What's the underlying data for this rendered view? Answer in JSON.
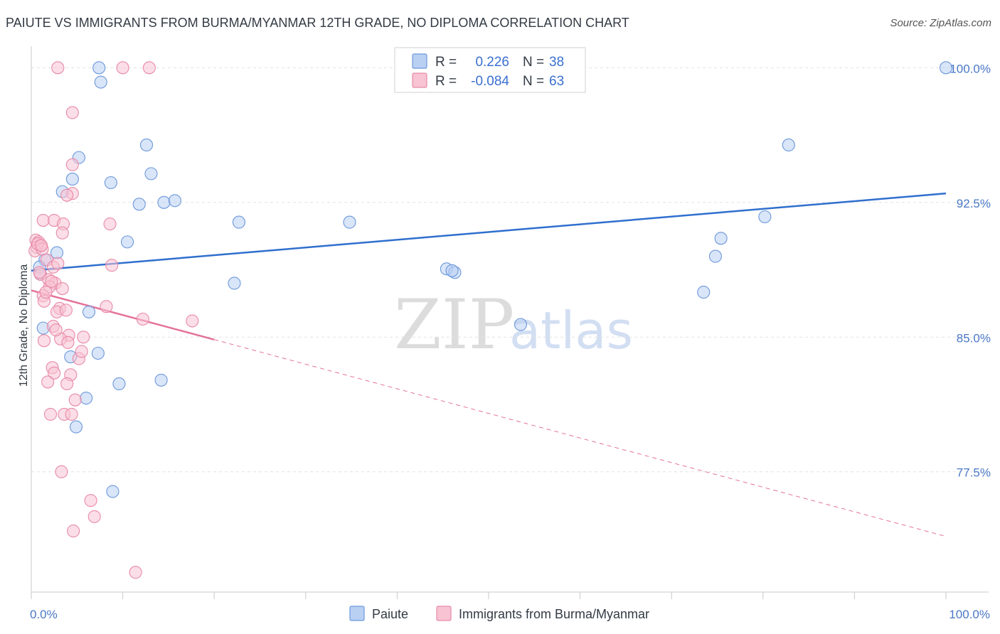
{
  "title": "PAIUTE VS IMMIGRANTS FROM BURMA/MYANMAR 12TH GRADE, NO DIPLOMA CORRELATION CHART",
  "source": "Source: ZipAtlas.com",
  "watermark": {
    "zip": "ZIP",
    "atlas": "atlas"
  },
  "colors": {
    "blue_fill": "#b9d0f3",
    "blue_stroke": "#6c98db",
    "blue_line": "#2f6fce",
    "pink_fill": "#f8c3d3",
    "pink_stroke": "#e88aa8",
    "pink_line": "#e4729b",
    "grid": "#e2e2e2",
    "tick_text": "#4a78c6"
  },
  "chart_data": {
    "type": "scatter",
    "title": "PAIUTE VS IMMIGRANTS FROM BURMA/MYANMAR 12TH GRADE, NO DIPLOMA CORRELATION CHART",
    "xlabel": "",
    "ylabel": "12th Grade, No Diploma",
    "xlim": [
      0,
      100
    ],
    "ylim": [
      70.8,
      101.2
    ],
    "x_tick_labels": [
      {
        "value": 0,
        "label": "0.0%"
      },
      {
        "value": 100,
        "label": "100.0%"
      }
    ],
    "y_ticks": [
      {
        "value": 100,
        "label": "100.0%"
      },
      {
        "value": 92.5,
        "label": "92.5%"
      },
      {
        "value": 85,
        "label": "85.0%"
      },
      {
        "value": 77.5,
        "label": "77.5%"
      }
    ],
    "x_minor_ticks": [
      0,
      10,
      20,
      30,
      40,
      50,
      60,
      70,
      80,
      90,
      100
    ],
    "legend": [
      {
        "label": "Paiute",
        "r_label": "R =",
        "r_value": "0.226",
        "n_label": "N =",
        "n_value": "38"
      },
      {
        "label": "Immigrants from Burma/Myanmar",
        "r_label": "R =",
        "r_value": "-0.084",
        "n_label": "N =",
        "n_value": "63"
      }
    ],
    "series": [
      {
        "name": "Paiute",
        "trend": {
          "x0": 0,
          "y0": 88.7,
          "x1": 100,
          "y1": 93.0,
          "dashed_from": null
        },
        "points": [
          {
            "x": 7.4,
            "y": 100.0
          },
          {
            "x": 7.6,
            "y": 99.2
          },
          {
            "x": 5.2,
            "y": 95.0
          },
          {
            "x": 12.6,
            "y": 95.7
          },
          {
            "x": 4.5,
            "y": 93.8
          },
          {
            "x": 13.1,
            "y": 94.1
          },
          {
            "x": 8.7,
            "y": 93.6
          },
          {
            "x": 3.4,
            "y": 93.1
          },
          {
            "x": 11.8,
            "y": 92.4
          },
          {
            "x": 14.5,
            "y": 92.5
          },
          {
            "x": 15.7,
            "y": 92.6
          },
          {
            "x": 22.7,
            "y": 91.4
          },
          {
            "x": 34.8,
            "y": 91.4
          },
          {
            "x": 10.5,
            "y": 90.3
          },
          {
            "x": 2.8,
            "y": 89.7
          },
          {
            "x": 1.5,
            "y": 89.3
          },
          {
            "x": 0.9,
            "y": 88.9
          },
          {
            "x": 22.2,
            "y": 88.0
          },
          {
            "x": 45.4,
            "y": 88.8
          },
          {
            "x": 46.3,
            "y": 88.6
          },
          {
            "x": 53.5,
            "y": 85.7
          },
          {
            "x": 6.3,
            "y": 86.4
          },
          {
            "x": 1.3,
            "y": 85.5
          },
          {
            "x": 7.3,
            "y": 84.1
          },
          {
            "x": 4.3,
            "y": 83.9
          },
          {
            "x": 9.6,
            "y": 82.4
          },
          {
            "x": 14.2,
            "y": 82.6
          },
          {
            "x": 6.0,
            "y": 81.6
          },
          {
            "x": 4.9,
            "y": 80.0
          },
          {
            "x": 8.9,
            "y": 76.4
          },
          {
            "x": 100.0,
            "y": 100.0
          },
          {
            "x": 82.8,
            "y": 95.7
          },
          {
            "x": 75.4,
            "y": 90.5
          },
          {
            "x": 80.2,
            "y": 91.7
          },
          {
            "x": 74.8,
            "y": 89.5
          },
          {
            "x": 73.5,
            "y": 87.5
          },
          {
            "x": 1.0,
            "y": 88.5
          },
          {
            "x": 46.0,
            "y": 88.7
          }
        ]
      },
      {
        "name": "Immigrants from Burma/Myanmar",
        "trend": {
          "x0": 0,
          "y0": 87.6,
          "x1": 100,
          "y1": 73.9,
          "dashed_from": 20
        },
        "points": [
          {
            "x": 2.9,
            "y": 100.0
          },
          {
            "x": 10.0,
            "y": 100.0
          },
          {
            "x": 12.9,
            "y": 100.0
          },
          {
            "x": 4.5,
            "y": 97.5
          },
          {
            "x": 4.5,
            "y": 94.6
          },
          {
            "x": 4.5,
            "y": 93.0
          },
          {
            "x": 3.9,
            "y": 92.9
          },
          {
            "x": 1.3,
            "y": 91.5
          },
          {
            "x": 2.5,
            "y": 91.5
          },
          {
            "x": 3.5,
            "y": 91.3
          },
          {
            "x": 8.6,
            "y": 91.3
          },
          {
            "x": 3.4,
            "y": 90.8
          },
          {
            "x": 0.5,
            "y": 90.4
          },
          {
            "x": 0.8,
            "y": 90.3
          },
          {
            "x": 1.0,
            "y": 90.1
          },
          {
            "x": 0.6,
            "y": 90.0
          },
          {
            "x": 0.4,
            "y": 89.8
          },
          {
            "x": 1.7,
            "y": 89.3
          },
          {
            "x": 2.4,
            "y": 88.9
          },
          {
            "x": 8.8,
            "y": 89.0
          },
          {
            "x": 1.0,
            "y": 88.5
          },
          {
            "x": 1.9,
            "y": 88.2
          },
          {
            "x": 2.6,
            "y": 88.0
          },
          {
            "x": 2.0,
            "y": 87.8
          },
          {
            "x": 3.4,
            "y": 87.7
          },
          {
            "x": 1.3,
            "y": 87.3
          },
          {
            "x": 1.4,
            "y": 87.0
          },
          {
            "x": 3.1,
            "y": 86.6
          },
          {
            "x": 2.8,
            "y": 86.4
          },
          {
            "x": 8.2,
            "y": 86.7
          },
          {
            "x": 12.2,
            "y": 86.0
          },
          {
            "x": 17.6,
            "y": 85.9
          },
          {
            "x": 2.4,
            "y": 85.6
          },
          {
            "x": 4.1,
            "y": 85.1
          },
          {
            "x": 5.7,
            "y": 85.0
          },
          {
            "x": 3.2,
            "y": 84.9
          },
          {
            "x": 1.4,
            "y": 84.8
          },
          {
            "x": 4.0,
            "y": 84.7
          },
          {
            "x": 5.2,
            "y": 83.8
          },
          {
            "x": 2.3,
            "y": 83.3
          },
          {
            "x": 2.5,
            "y": 83.0
          },
          {
            "x": 4.3,
            "y": 82.9
          },
          {
            "x": 1.8,
            "y": 82.5
          },
          {
            "x": 3.9,
            "y": 82.4
          },
          {
            "x": 4.8,
            "y": 81.5
          },
          {
            "x": 2.1,
            "y": 80.7
          },
          {
            "x": 3.6,
            "y": 80.7
          },
          {
            "x": 4.4,
            "y": 80.7
          },
          {
            "x": 3.3,
            "y": 77.5
          },
          {
            "x": 6.5,
            "y": 75.9
          },
          {
            "x": 6.9,
            "y": 75.0
          },
          {
            "x": 4.6,
            "y": 74.2
          },
          {
            "x": 11.4,
            "y": 71.9
          },
          {
            "x": 0.7,
            "y": 90.2
          },
          {
            "x": 1.2,
            "y": 89.9
          },
          {
            "x": 2.2,
            "y": 88.1
          },
          {
            "x": 1.6,
            "y": 87.5
          },
          {
            "x": 3.8,
            "y": 86.5
          },
          {
            "x": 0.9,
            "y": 88.6
          },
          {
            "x": 2.7,
            "y": 85.4
          },
          {
            "x": 5.5,
            "y": 84.2
          },
          {
            "x": 1.1,
            "y": 90.1
          },
          {
            "x": 2.9,
            "y": 89.1
          }
        ]
      }
    ]
  }
}
